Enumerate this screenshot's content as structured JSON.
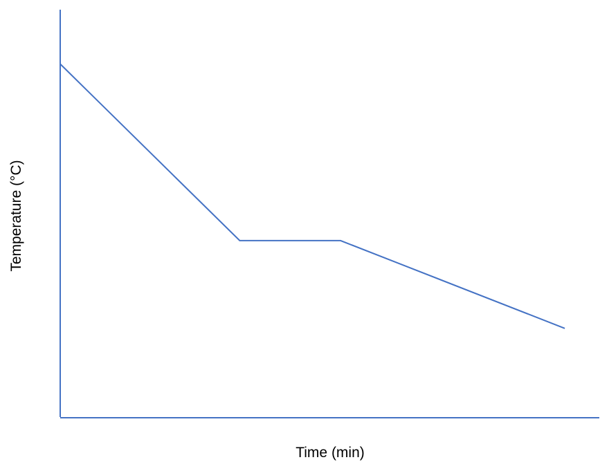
{
  "chart_data": {
    "type": "line",
    "title": "",
    "xlabel": "Time (min)",
    "ylabel": "Temperature (°C)",
    "grid": false,
    "legend": "none",
    "ticks": false,
    "axis_color": "#4472C4",
    "line_color": "#4472C4",
    "xlim": [
      0,
      100
    ],
    "ylim": [
      0,
      100
    ],
    "series": [
      {
        "x": [
          0,
          33.3,
          52,
          93.6
        ],
        "y": [
          86.7,
          43.4,
          43.4,
          21.9
        ]
      }
    ]
  }
}
